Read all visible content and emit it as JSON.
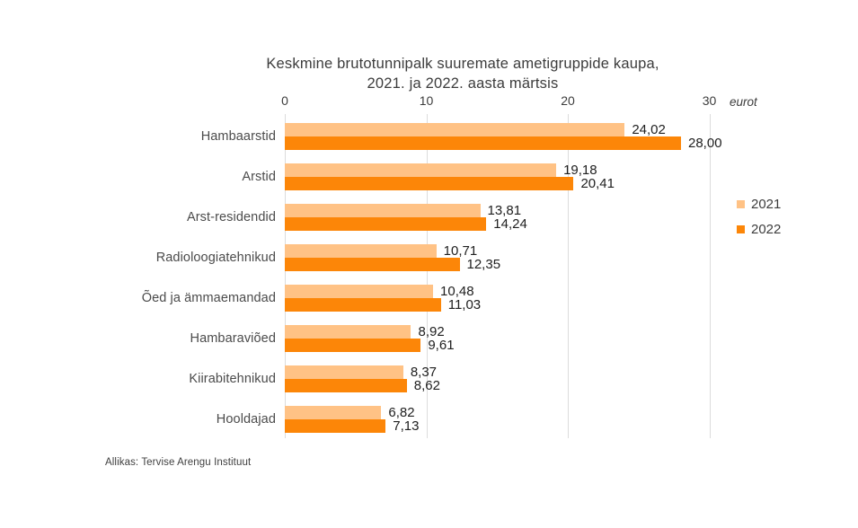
{
  "title": {
    "line1": "Keskmine brutotunnipalk suuremate ametigruppide kaupa,",
    "line2": "2021. ja 2022. aasta märtsis"
  },
  "axis": {
    "tick_labels": [
      "0",
      "10",
      "20",
      "30"
    ],
    "unit_label": "eurot"
  },
  "legend": [
    {
      "label": "2021",
      "color": "#ffc285"
    },
    {
      "label": "2022",
      "color": "#fc8608"
    }
  ],
  "source": "Allikas: Tervise Arengu Instituut",
  "colors": {
    "series_2021": "#ffc285",
    "series_2022": "#fc8608",
    "gridline": "#dcdcdc",
    "text": "#3c3c3c"
  },
  "chart_data": {
    "type": "bar",
    "orientation": "horizontal",
    "title": "Keskmine brutotunnipalk suuremate ametigruppide kaupa, 2021. ja 2022. aasta märtsis",
    "unit": "eurot",
    "categories": [
      "Hambaarstid",
      "Arstid",
      "Arst-residendid",
      "Radioloogiatehnikud",
      "Õed ja ämmaemandad",
      "Hambaraviõed",
      "Kiirabitehnikud",
      "Hooldajad"
    ],
    "series": [
      {
        "name": "2021",
        "color": "#ffc285",
        "values": [
          24.02,
          19.18,
          13.81,
          10.71,
          10.48,
          8.92,
          8.37,
          6.82
        ],
        "labels": [
          "24,02",
          "19,18",
          "13,81",
          "10,71",
          "10,48",
          "8,92",
          "8,37",
          "6,82"
        ]
      },
      {
        "name": "2022",
        "color": "#fc8608",
        "values": [
          28.0,
          20.41,
          14.24,
          12.35,
          11.03,
          9.61,
          8.62,
          7.13
        ],
        "labels": [
          "28,00",
          "20,41",
          "14,24",
          "12,35",
          "11,03",
          "9,61",
          "8,62",
          "7,13"
        ]
      }
    ],
    "xlim": [
      0,
      31.5
    ],
    "x_ticks": [
      0,
      10,
      20,
      30
    ],
    "grid": true,
    "legend_position": "right",
    "source": "Allikas: Tervise Arengu Instituut"
  }
}
